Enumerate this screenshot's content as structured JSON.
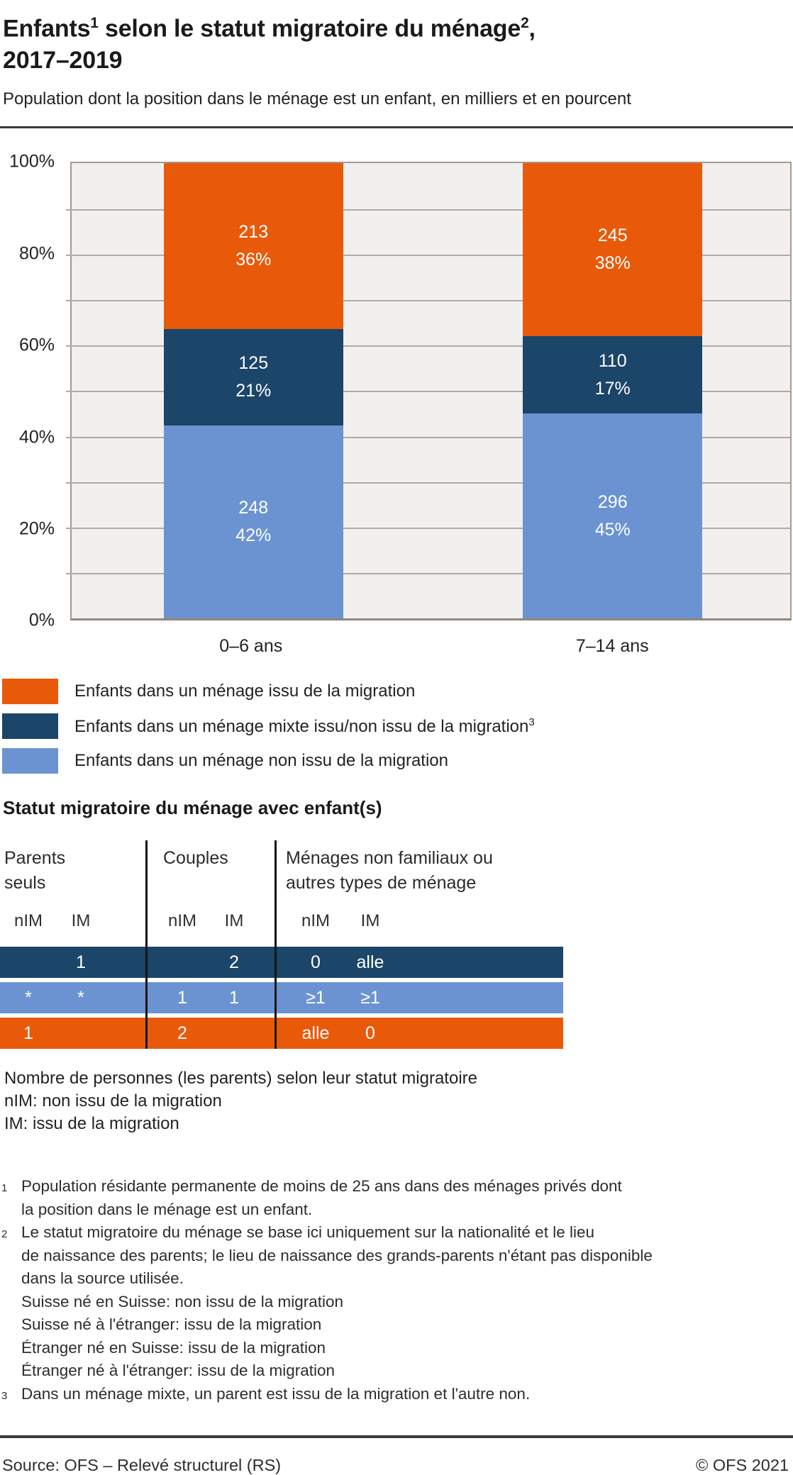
{
  "title": {
    "part1": "Enfants",
    "sup1": "1",
    "part2": " selon le statut migratoire du ménage",
    "sup2": "2",
    "part3": ",",
    "line2": "2017–2019"
  },
  "subtitle": "Population dont la position dans le ménage est un enfant, en milliers et en pourcent",
  "chart_data": {
    "type": "bar",
    "stacked": true,
    "title": "Enfants selon le statut migratoire du ménage, 2017–2019",
    "subtitle": "Population dont la position dans le ménage est un enfant, en milliers et en pourcent",
    "categories": [
      "0–6 ans",
      "7–14 ans"
    ],
    "series": [
      {
        "name": "Enfants dans un ménage non issu de la migration",
        "color": "#6b93d1",
        "thousands": [
          248,
          296
        ],
        "percent": [
          42,
          45
        ]
      },
      {
        "name": "Enfants dans un ménage mixte issu/non issu de la migration",
        "color": "#1b4569",
        "thousands": [
          125,
          110
        ],
        "percent": [
          21,
          17
        ]
      },
      {
        "name": "Enfants dans un ménage issu de la migration",
        "color": "#e85a0a",
        "thousands": [
          213,
          245
        ],
        "percent": [
          36,
          38
        ]
      }
    ],
    "ylim": [
      0,
      100
    ],
    "y_ticks": [
      "0%",
      "20%",
      "40%",
      "60%",
      "80%",
      "100%"
    ],
    "grid_step_percent": 10,
    "grid": true,
    "legend_position": "bottom",
    "bar_label_format": "thousands above percent"
  },
  "legend": {
    "items": [
      {
        "color": "#e85a0a",
        "label": "Enfants dans un ménage issu de la migration",
        "sup": ""
      },
      {
        "color": "#1b4569",
        "label": "Enfants dans un ménage mixte issu/non issu de la migration",
        "sup": "3"
      },
      {
        "color": "#6b93d1",
        "label": "Enfants dans un ménage non issu de la migration",
        "sup": ""
      }
    ]
  },
  "household_table": {
    "heading": "Statut migratoire du ménage avec enfant(s)",
    "groups": [
      {
        "label_lines": [
          "Parents",
          "seuls"
        ],
        "sub_headers": [
          "nIM",
          "IM"
        ]
      },
      {
        "label_lines": [
          "Couples"
        ],
        "sub_headers": [
          "nIM",
          "IM"
        ]
      },
      {
        "label_lines": [
          "Ménages non familiaux ou",
          "autres types de ménage"
        ],
        "sub_headers": [
          "nIM",
          "IM"
        ]
      }
    ],
    "rows": [
      {
        "key": "menage-mixte",
        "color": "#1b4569",
        "cells": [
          [
            "",
            "1"
          ],
          [
            "",
            "2"
          ],
          [
            "0",
            "alle"
          ]
        ]
      },
      {
        "key": "menage-non-issu",
        "color": "#6b93d1",
        "cells": [
          [
            "*",
            "*"
          ],
          [
            "1",
            "1"
          ],
          [
            "≥1",
            "≥1"
          ]
        ]
      },
      {
        "key": "menage-issu",
        "color": "#e85a0a",
        "cells": [
          [
            "1",
            ""
          ],
          [
            "2",
            ""
          ],
          [
            "alle",
            "0"
          ]
        ]
      }
    ],
    "notes": [
      "Nombre de personnes (les parents) selon leur statut migratoire",
      "nIM: non issu de la migration",
      "IM: issu de la migration"
    ]
  },
  "footnotes": [
    {
      "marker": "1",
      "lines": [
        "Population résidante permanente de moins de 25 ans dans des ménages privés dont",
        "la position dans le ménage est un enfant."
      ]
    },
    {
      "marker": "2",
      "lines": [
        "Le statut migratoire du ménage se base ici uniquement sur la nationalité et le lieu",
        "de naissance des parents; le lieu de naissance des grands-parents n'étant pas disponible",
        "dans la source utilisée.",
        "Suisse né en Suisse: non issu de la migration",
        "Suisse né à l'étranger: issu de la migration",
        "Étranger né en Suisse: issu de la migration",
        "Étranger né à l'étranger: issu de la migration"
      ]
    },
    {
      "marker": "3",
      "lines": [
        "Dans un ménage mixte, un parent est issu de la migration et l'autre non."
      ]
    }
  ],
  "footer": {
    "source": "Source: OFS – Relevé structurel (RS)",
    "copyright": "© OFS 2021"
  }
}
